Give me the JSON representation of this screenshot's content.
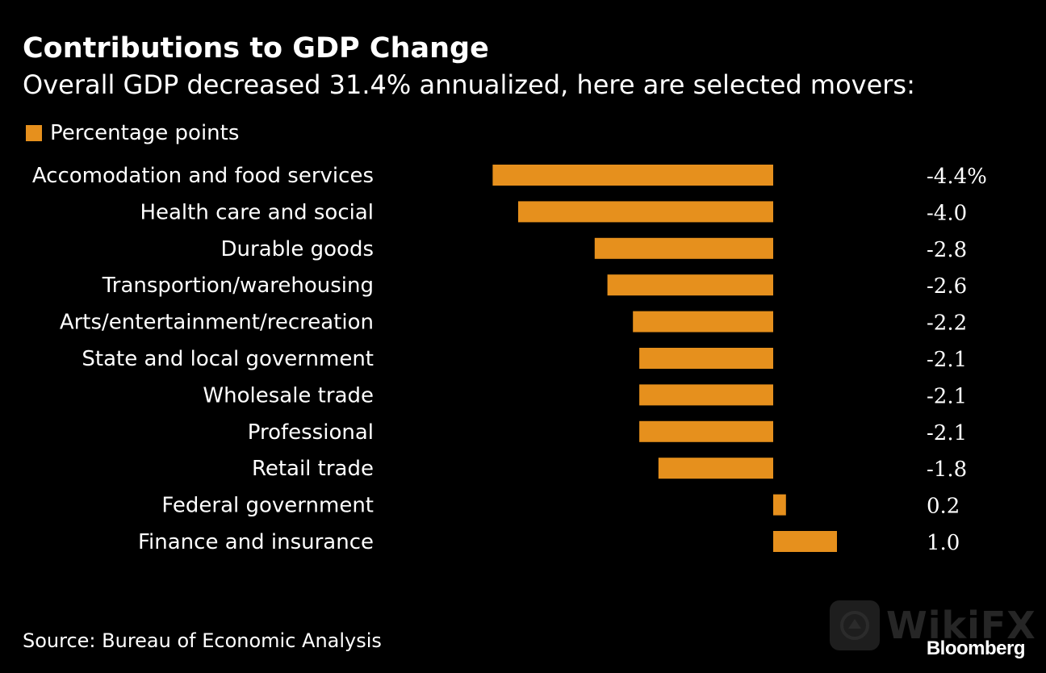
{
  "title": "Contributions to GDP Change",
  "subtitle": "Overall GDP decreased 31.4% annualized, here are selected movers:",
  "legend_label": "Percentage points",
  "source": "Source: Bureau of Economic Analysis",
  "brand": "Bloomberg",
  "watermark": "WikiFX",
  "colors": {
    "background": "#000000",
    "bar": "#e6901d",
    "text": "#ffffff"
  },
  "chart_data": {
    "type": "bar",
    "orientation": "horizontal",
    "categories": [
      "Accomodation and food services",
      "Health care and social",
      "Durable goods",
      "Transportion/warehousing",
      "Arts/entertainment/recreation",
      "State and local government",
      "Wholesale trade",
      "Professional",
      "Retail trade",
      "Federal government",
      "Finance and insurance"
    ],
    "values": [
      -4.4,
      -4.0,
      -2.8,
      -2.6,
      -2.2,
      -2.1,
      -2.1,
      -2.1,
      -1.8,
      0.2,
      1.0
    ],
    "value_labels": [
      "-4.4%",
      "-4.0",
      "-2.8",
      "-2.6",
      "-2.2",
      "-2.1",
      "-2.1",
      "-2.1",
      "-1.8",
      "0.2",
      "1.0"
    ],
    "series": [
      {
        "name": "Percentage points"
      }
    ],
    "xlim": [
      -4.4,
      1.0
    ],
    "grid": false,
    "legend_position": "top-left"
  }
}
